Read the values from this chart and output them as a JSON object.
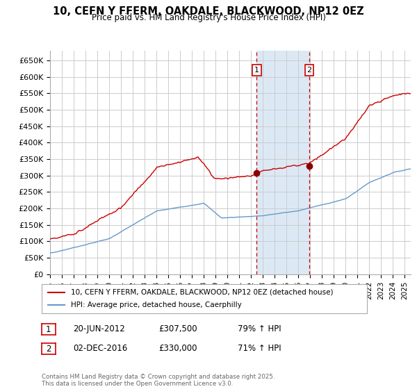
{
  "title": "10, CEFN Y FFERM, OAKDALE, BLACKWOOD, NP12 0EZ",
  "subtitle": "Price paid vs. HM Land Registry's House Price Index (HPI)",
  "ylabel_ticks": [
    "£0",
    "£50K",
    "£100K",
    "£150K",
    "£200K",
    "£250K",
    "£300K",
    "£350K",
    "£400K",
    "£450K",
    "£500K",
    "£550K",
    "£600K",
    "£650K"
  ],
  "ytick_values": [
    0,
    50000,
    100000,
    150000,
    200000,
    250000,
    300000,
    350000,
    400000,
    450000,
    500000,
    550000,
    600000,
    650000
  ],
  "ylim": [
    0,
    680000
  ],
  "xlim_start": 1995.0,
  "xlim_end": 2025.5,
  "red_line_color": "#cc0000",
  "blue_line_color": "#6699cc",
  "grid_color": "#cccccc",
  "bg_color": "#ffffff",
  "transaction1_x": 2012.47,
  "transaction1_y": 307500,
  "transaction1_label": "1",
  "transaction2_x": 2016.92,
  "transaction2_y": 330000,
  "transaction2_label": "2",
  "legend_entry1": "10, CEFN Y FFERM, OAKDALE, BLACKWOOD, NP12 0EZ (detached house)",
  "legend_entry2": "HPI: Average price, detached house, Caerphilly",
  "footer_line1": "Contains HM Land Registry data © Crown copyright and database right 2025.",
  "footer_line2": "This data is licensed under the Open Government Licence v3.0.",
  "table_row1": [
    "1",
    "20-JUN-2012",
    "£307,500",
    "79% ↑ HPI"
  ],
  "table_row2": [
    "2",
    "02-DEC-2016",
    "£330,000",
    "71% ↑ HPI"
  ],
  "highlight_color": "#dce9f5",
  "dot_color": "#8b0000"
}
